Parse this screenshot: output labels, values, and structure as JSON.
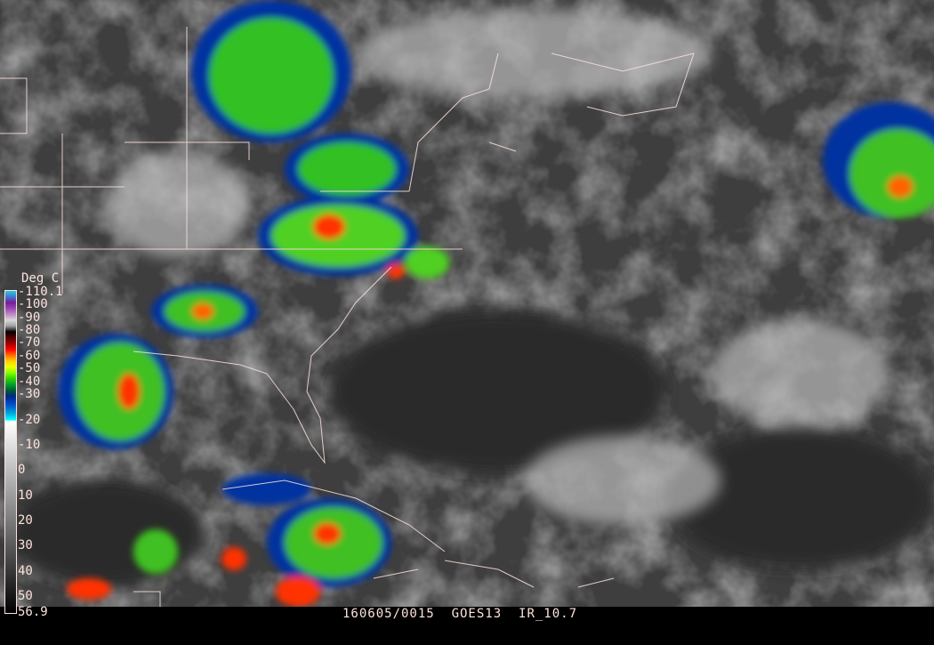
{
  "legend": {
    "unit": "Deg C",
    "max_label": "-110.1",
    "min_label": "56.9",
    "ticks": [
      "-100",
      "-90",
      "-80",
      "-70",
      "-60",
      "-50",
      "-40",
      "-30",
      "-20",
      "-10",
      "0",
      "10",
      "20",
      "30",
      "40",
      "50"
    ],
    "colors": [
      "#33c6e0",
      "#3a7bd0",
      "#7a1a9a",
      "#9a4ab0",
      "#c08ac8",
      "#d8d8d8",
      "#a0a0a0",
      "#000000",
      "#5a0000",
      "#a00000",
      "#ff0000",
      "#ff7000",
      "#ffd000",
      "#f0ff00",
      "#80ff00",
      "#30d000",
      "#00a030",
      "#005a30",
      "#002a80",
      "#0040c0",
      "#0070d0",
      "#00b0e0",
      "#00ffff",
      "#ffffff",
      "#000000"
    ]
  },
  "caption": {
    "datetime": "160605/0015",
    "satellite": "GOES13",
    "channel": "IR_10.7"
  }
}
